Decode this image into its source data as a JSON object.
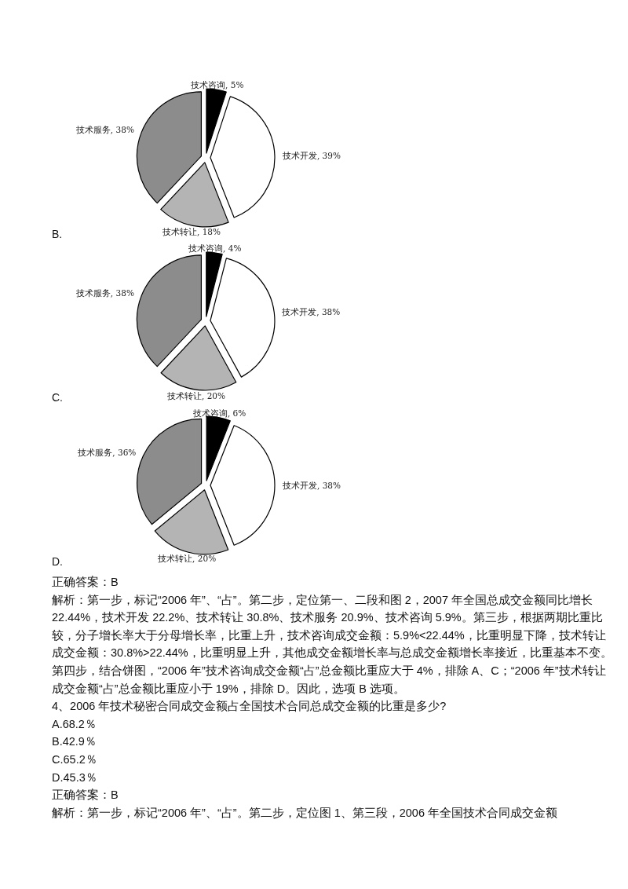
{
  "chart_data": [
    {
      "type": "pie",
      "title": "B.",
      "categories": [
        "技术咨询",
        "技术开发",
        "技术转让",
        "技术服务"
      ],
      "values": [
        5,
        39,
        18,
        38
      ],
      "value_labels": [
        ", 5%",
        ", 39%",
        ", 18%",
        ", 38%"
      ],
      "colors": [
        "#000000",
        "#ffffff",
        "#b4b4b4",
        "#8c8c8c"
      ]
    },
    {
      "type": "pie",
      "title": "C.",
      "categories": [
        "技术咨询",
        "技术开发",
        "技术转让",
        "技术服务"
      ],
      "values": [
        4,
        38,
        20,
        38
      ],
      "value_labels": [
        ", 4%",
        ", 38%",
        ", 20%",
        ", 38%"
      ],
      "colors": [
        "#000000",
        "#ffffff",
        "#b4b4b4",
        "#8c8c8c"
      ]
    },
    {
      "type": "pie",
      "title": "D.",
      "categories": [
        "技术咨询",
        "技术开发",
        "技术转让",
        "技术服务"
      ],
      "values": [
        6,
        38,
        20,
        36
      ],
      "value_labels": [
        ", 6%",
        ", 38%",
        ", 20%",
        ", 36%"
      ],
      "colors": [
        "#000000",
        "#ffffff",
        "#b4b4b4",
        "#8c8c8c"
      ]
    },
    {
      "type": "other",
      "annotations": [
        "正确答案：B",
        "解析：第一步，标记“2006 年”、“占”。第二步，定位第一、二段和图 2，2007 年全国总成交金额同比增长 22.44%，技术开发 22.2%、技术转让 30.8%、技术服务 20.9%、技术咨询 5.9%。第三步，根据两期比重比较，分子增长率大于分母增长率，比重上升，技术咨询成交金额：5.9%<22.44%，比重明显下降，技术转让成交金额：30.8%>22.44%，比重明显上升，其他成交金额增长率与总成交金额增长率接近，比重基本不变。第四步，结合饼图，“2006 年”技术咨询成交金额“占”总金额比重应大于 4%，排除 A、C；“2006 年”技术转让成交金额“占”总金额比重应小于 19%，排除 D。因此，选项 B 选项。",
        "4、2006 年技术秘密合同成交金额占全国技术合同总成交金额的比重是多少?",
        "A.68.2％",
        "B.42.9％",
        "C.65.2％",
        "D.45.3％",
        "正确答案：B",
        "解析：第一步，标记“2006 年”、“占”。第二步，定位图 1、第三段，2006 年全国技术合同成交金额"
      ]
    }
  ]
}
